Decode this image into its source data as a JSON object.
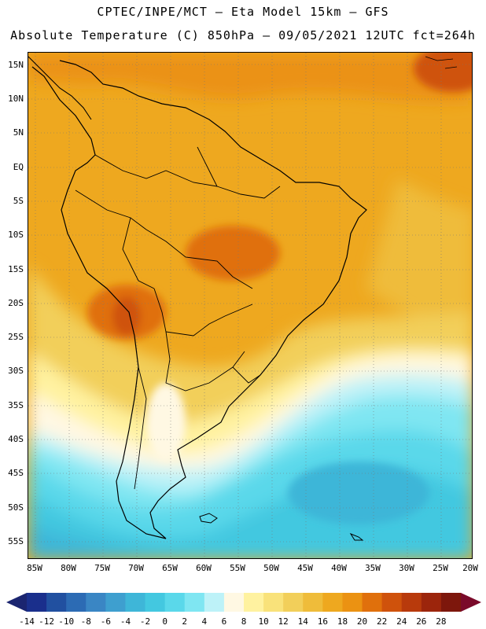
{
  "header": {
    "title_line1": "CPTEC/INPE/MCT –  Eta Model 15km – GFS",
    "title_line2": "Absolute Temperature (C) 850hPa – 09/05/2021 12UTC fct=264h"
  },
  "map": {
    "region": "South America",
    "variable": "Absolute Temperature (C)",
    "level": "850hPa",
    "lat_labels": [
      "15N",
      "10N",
      "5N",
      "EQ",
      "5S",
      "10S",
      "15S",
      "20S",
      "25S",
      "30S",
      "35S",
      "40S",
      "45S",
      "50S",
      "55S"
    ],
    "lon_labels": [
      "85W",
      "80W",
      "75W",
      "70W",
      "65W",
      "60W",
      "55W",
      "50W",
      "45W",
      "40W",
      "35W",
      "30W",
      "25W",
      "20W"
    ]
  },
  "legend": {
    "labels": [
      "-14",
      "-12",
      "-10",
      "-8",
      "-6",
      "-4",
      "-2",
      "0",
      "2",
      "4",
      "6",
      "8",
      "10",
      "12",
      "14",
      "16",
      "18",
      "20",
      "22",
      "24",
      "26",
      "28"
    ],
    "colors": [
      "#1a2f8c",
      "#2150a0",
      "#2c6bb4",
      "#3a86c4",
      "#3e9fcf",
      "#3eb6d8",
      "#43c8e0",
      "#5ad8ea",
      "#7fe6f2",
      "#bdf2f8",
      "#fff8e3",
      "#fff2a0",
      "#f9e27a",
      "#f2cf5a",
      "#efbc3a",
      "#eea81f",
      "#eb9212",
      "#e0700c",
      "#cf520c",
      "#b83a0c",
      "#9c250c",
      "#7d170c"
    ],
    "under_color": "#1b2570",
    "over_color": "#7a0a2a"
  }
}
